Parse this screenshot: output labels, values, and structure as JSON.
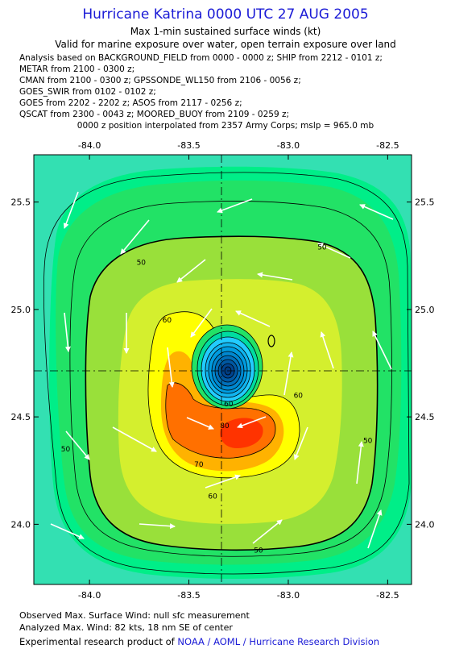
{
  "header": {
    "title": "Hurricane Katrina 0000 UTC 27 AUG 2005",
    "subtitle1": "Max 1-min sustained surface winds (kt)",
    "subtitle2": "Valid for marine exposure over water, open terrain exposure over land"
  },
  "analysis_lines": [
    "Analysis based on  BACKGROUND_FIELD from 0000 - 0000 z;  SHIP from 2212 - 0101 z;",
    "METAR from 2100 - 0300 z;",
    "CMAN from 2100 - 0300 z;  GPSSONDE_WL150 from 2106 - 0056 z;",
    "GOES_SWIR from 0102 - 0102 z;",
    "GOES from 2202 - 2202 z;  ASOS from 2117 - 0256 z;",
    "QSCAT from 2300 - 0043 z;  MOORED_BUOY from 2109 - 0259 z;"
  ],
  "position_note": "0000 z position interpolated from 2357 Army Corps; mslp = 965.0 mb",
  "map": {
    "lon_ticks": [
      {
        "value": -84.0,
        "label": "-84.0"
      },
      {
        "value": -83.5,
        "label": "-83.5"
      },
      {
        "value": -83.0,
        "label": "-83.0"
      },
      {
        "value": -82.5,
        "label": "-82.5"
      }
    ],
    "lat_ticks": [
      {
        "value": 25.5,
        "label": "25.5"
      },
      {
        "value": 25.0,
        "label": "25.0"
      },
      {
        "value": 24.5,
        "label": "24.5"
      },
      {
        "value": 24.0,
        "label": "24.0"
      }
    ],
    "lon_range": [
      -84.28,
      -82.38
    ],
    "lat_range": [
      23.72,
      25.72
    ],
    "center": {
      "lon": -83.3,
      "lat": 24.7
    },
    "contour_labels": [
      {
        "text": "50",
        "lon": -83.74,
        "lat": 25.22
      },
      {
        "text": "50",
        "lon": -82.83,
        "lat": 25.29
      },
      {
        "text": "50",
        "lon": -84.12,
        "lat": 24.35
      },
      {
        "text": "50",
        "lon": -82.6,
        "lat": 24.39
      },
      {
        "text": "50",
        "lon": -83.15,
        "lat": 23.88
      },
      {
        "text": "60",
        "lon": -83.61,
        "lat": 24.95
      },
      {
        "text": "60",
        "lon": -82.95,
        "lat": 24.6
      },
      {
        "text": "60",
        "lon": -83.38,
        "lat": 24.13
      },
      {
        "text": "70",
        "lon": -83.45,
        "lat": 24.28
      },
      {
        "text": "80",
        "lon": -83.32,
        "lat": 24.46
      },
      {
        "text": "60",
        "lon": -83.3,
        "lat": 24.56
      }
    ],
    "colors": {
      "c1": "#33e0b2",
      "c2": "#00ee88",
      "c3": "#22e266",
      "c4": "#99e03a",
      "c5": "#d4ef2e",
      "c6": "#ffff00",
      "c7": "#ffb200",
      "c8": "#ff7000",
      "c9": "#ff3300",
      "eye_lo": "#22ccff",
      "eye_mid": "#0088d0",
      "eye_hi": "#003c80",
      "arrow": "#ffffff"
    }
  },
  "footer": {
    "observed": "Observed Max. Surface Wind: null sfc measurement",
    "analyzed": "Analyzed Max. Wind: 82 kts, 18 nm SE of center",
    "research_prefix": "Experimental research product of ",
    "research_org": "NOAA / AOML / Hurricane Research Division"
  }
}
